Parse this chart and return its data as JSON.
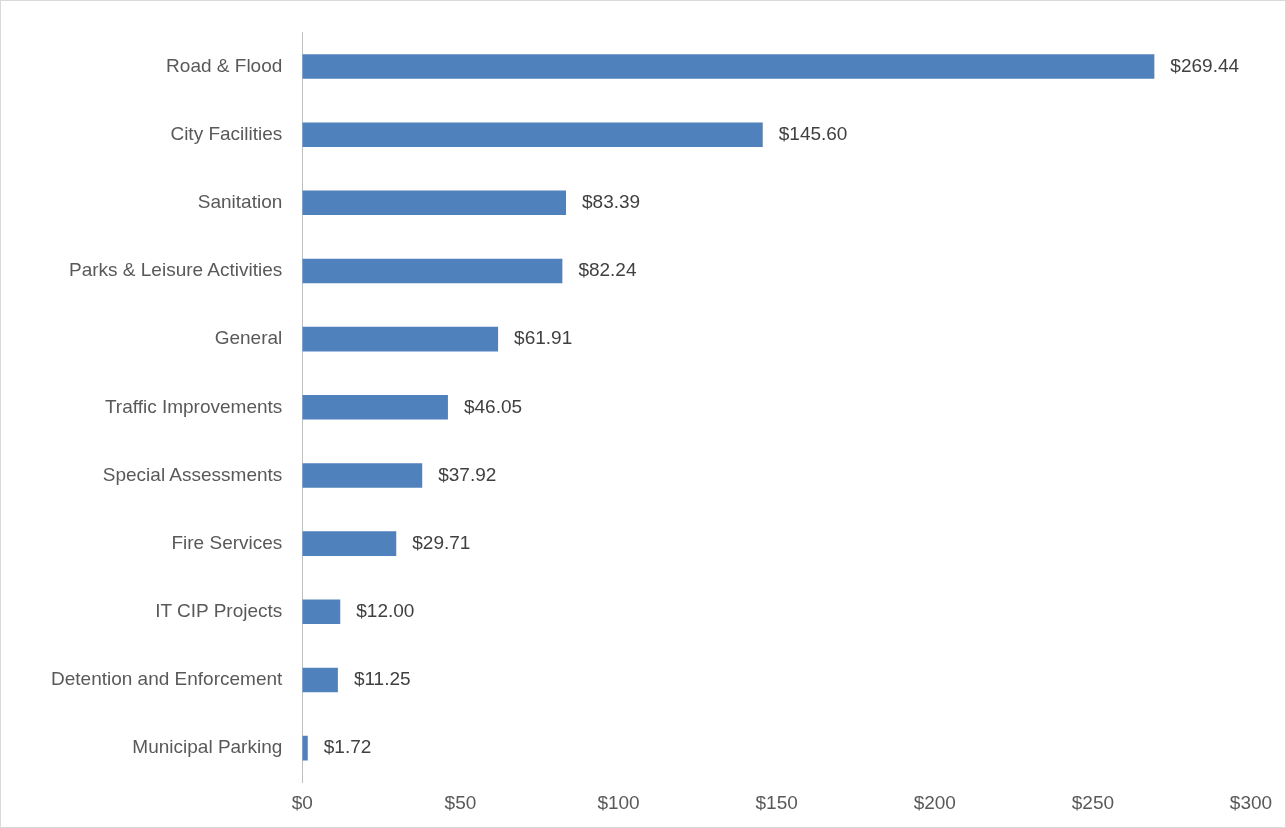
{
  "chart_data": {
    "type": "bar",
    "orientation": "horizontal",
    "categories": [
      "Road & Flood",
      "City Facilities",
      "Sanitation",
      "Parks & Leisure Activities",
      "General",
      "Traffic Improvements",
      "Special Assessments",
      "Fire Services",
      "IT CIP Projects",
      "Detention and Enforcement",
      "Municipal Parking"
    ],
    "values": [
      269.44,
      145.6,
      83.39,
      82.24,
      61.91,
      46.05,
      37.92,
      29.71,
      12,
      11.25,
      1.72
    ],
    "value_labels": [
      "$269.44",
      "$145.60",
      "$83.39",
      "$82.24",
      "$61.91",
      "$46.05",
      "$37.92",
      "$29.71",
      "$12.00",
      "$11.25",
      "$1.72"
    ],
    "color": "#4f81bd",
    "xlim": [
      0,
      300
    ],
    "xticks": [
      {
        "value": 0,
        "label": "$0"
      },
      {
        "value": 50,
        "label": "$50"
      },
      {
        "value": 100,
        "label": "$100"
      },
      {
        "value": 150,
        "label": "$150"
      },
      {
        "value": 200,
        "label": "$200"
      },
      {
        "value": 250,
        "label": "$250"
      },
      {
        "value": 300,
        "label": "$300"
      }
    ]
  }
}
